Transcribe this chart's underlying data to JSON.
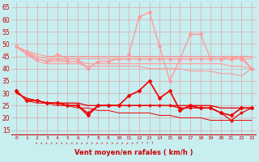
{
  "x": [
    0,
    1,
    2,
    3,
    4,
    5,
    6,
    7,
    8,
    9,
    10,
    11,
    12,
    13,
    14,
    15,
    16,
    17,
    18,
    19,
    20,
    21,
    22,
    23
  ],
  "pink_spike": [
    null,
    null,
    null,
    null,
    null,
    null,
    null,
    null,
    null,
    null,
    null,
    46,
    61,
    63,
    49,
    35,
    44,
    54,
    54,
    44,
    44,
    44,
    44,
    40
  ],
  "pink_line1": [
    49,
    47,
    44,
    43,
    46,
    44,
    44,
    40,
    43,
    43,
    44,
    44,
    44,
    44,
    44,
    44,
    44,
    44,
    44,
    44,
    44,
    45,
    45,
    40
  ],
  "pink_line2": [
    49,
    46,
    44,
    43,
    44,
    43,
    43,
    40,
    43,
    43,
    44,
    44,
    44,
    44,
    44,
    44,
    44,
    44,
    44,
    44,
    44,
    44,
    45,
    40
  ],
  "pink_flat1": [
    49,
    47,
    46,
    45,
    45,
    45,
    45,
    45,
    45,
    45,
    45,
    45,
    45,
    45,
    45,
    45,
    45,
    45,
    45,
    45,
    45,
    45,
    45,
    45
  ],
  "pink_flat2": [
    49,
    47,
    45,
    44,
    44,
    44,
    44,
    44,
    44,
    44,
    44,
    44,
    44,
    44,
    44,
    44,
    44,
    44,
    44,
    44,
    44,
    44,
    44,
    44
  ],
  "pink_flat3": [
    49,
    46,
    44,
    43,
    43,
    43,
    43,
    42,
    42,
    42,
    42,
    42,
    42,
    42,
    42,
    42,
    42,
    42,
    42,
    42,
    42,
    41,
    41,
    40
  ],
  "pink_flat4": [
    49,
    46,
    43,
    42,
    42,
    42,
    42,
    41,
    41,
    41,
    41,
    41,
    41,
    40,
    40,
    40,
    40,
    39,
    39,
    39,
    38,
    38,
    37,
    40
  ],
  "red_zigzag": [
    31,
    27,
    27,
    26,
    26,
    25,
    25,
    21,
    25,
    25,
    25,
    29,
    31,
    35,
    28,
    31,
    23,
    25,
    24,
    24,
    22,
    21,
    24,
    24
  ],
  "red_main": [
    31,
    27,
    27,
    26,
    26,
    25,
    25,
    22,
    25,
    25,
    25,
    25,
    25,
    25,
    25,
    25,
    24,
    24,
    24,
    24,
    22,
    19,
    22,
    24
  ],
  "red_flat1": [
    30,
    28,
    27,
    26,
    26,
    26,
    26,
    25,
    25,
    25,
    25,
    25,
    25,
    25,
    25,
    25,
    25,
    25,
    25,
    25,
    24,
    24,
    24,
    24
  ],
  "red_flat2": [
    30,
    28,
    27,
    26,
    26,
    26,
    26,
    25,
    25,
    25,
    25,
    25,
    25,
    25,
    25,
    25,
    25,
    25,
    25,
    25,
    24,
    24,
    24,
    24
  ],
  "red_bottom": [
    31,
    27,
    26,
    26,
    25,
    25,
    24,
    24,
    23,
    23,
    22,
    22,
    22,
    22,
    21,
    21,
    20,
    20,
    20,
    19,
    19,
    19,
    19,
    19
  ],
  "bg_color": "#c8eef0",
  "grid_color": "#d8a8a8",
  "line_pink_color": "#ff9999",
  "line_red_color": "#ee0000",
  "xlabel": "Vent moyen/en rafales ( km/h )",
  "ylim": [
    13,
    67
  ],
  "yticks": [
    15,
    20,
    25,
    30,
    35,
    40,
    45,
    50,
    55,
    60,
    65
  ],
  "xticks": [
    0,
    1,
    2,
    3,
    4,
    5,
    6,
    7,
    8,
    9,
    10,
    11,
    12,
    13,
    14,
    15,
    16,
    17,
    18,
    19,
    20,
    21,
    22,
    23
  ],
  "arrow_ne_count": 20,
  "arrow_up_count": 4
}
